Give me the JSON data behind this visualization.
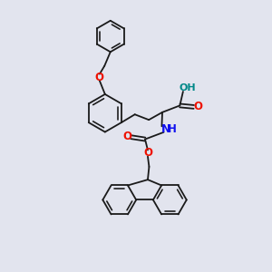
{
  "bg_color": "#e2e4ee",
  "bond_color": "#1a1a1a",
  "bond_lw": 1.3,
  "O_color": "#ee1100",
  "N_color": "#1111ee",
  "OH_color": "#008888",
  "fig_w": 3.0,
  "fig_h": 3.0,
  "dpi": 100,
  "xlim": [
    0,
    10
  ],
  "ylim": [
    0,
    10
  ]
}
